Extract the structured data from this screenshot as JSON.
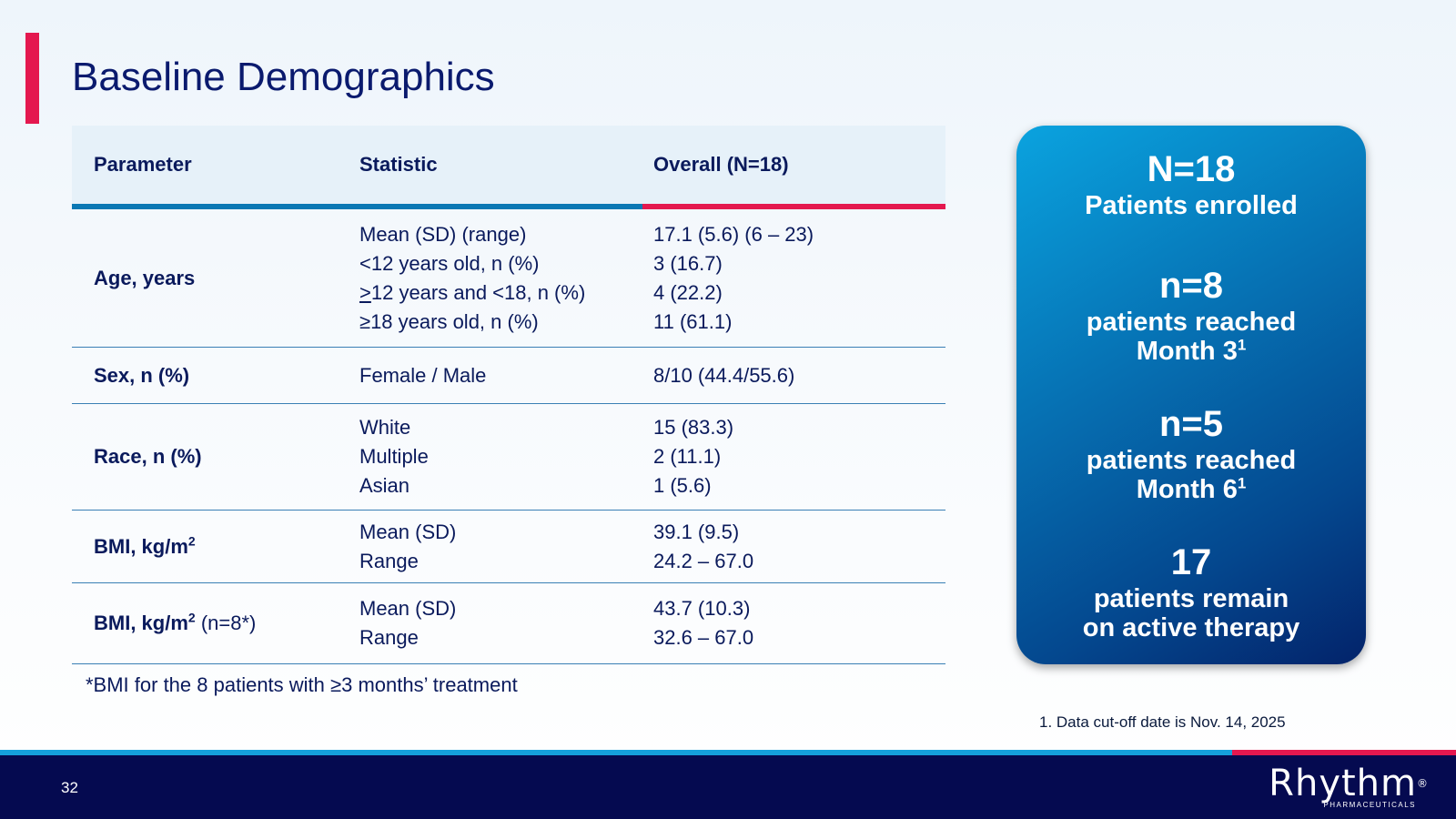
{
  "title": "Baseline Demographics",
  "table": {
    "headers": [
      "Parameter",
      "Statistic",
      "Overall (N=18)"
    ],
    "rows": [
      {
        "param": "Age, years",
        "stats": [
          "Mean (SD) (range)",
          "<12 years old, n (%)",
          ">12 years and <18, n (%)",
          "≥18 years old, n (%)"
        ],
        "values": [
          "17.1 (5.6) (6 – 23)",
          "3 (16.7)",
          "4 (22.2)",
          "11 (61.1)"
        ]
      },
      {
        "param": "Sex, n (%)",
        "stats": [
          "Female / Male"
        ],
        "values": [
          "8/10 (44.4/55.6)"
        ]
      },
      {
        "param": "Race, n (%)",
        "stats": [
          "White",
          "Multiple",
          "Asian"
        ],
        "values": [
          "15 (83.3)",
          "2 (11.1)",
          "1 (5.6)"
        ]
      },
      {
        "param": "BMI, kg/m",
        "param_sup": "2",
        "stats": [
          "Mean (SD)",
          "Range"
        ],
        "values": [
          "39.1 (9.5)",
          "24.2 – 67.0"
        ]
      },
      {
        "param": "BMI, kg/m",
        "param_sup": "2",
        "param_suffix": " (n=8*)",
        "stats": [
          "Mean (SD)",
          "Range"
        ],
        "values": [
          "43.7 (10.3)",
          "32.6  – 67.0"
        ]
      }
    ]
  },
  "table_footnote": "*BMI for the 8 patients with ≥3 months’ treatment",
  "callout": {
    "stats": [
      {
        "big": "N=18",
        "lines": [
          "Patients enrolled"
        ]
      },
      {
        "big": "n=8",
        "lines": [
          "patients reached",
          "Month 3"
        ],
        "sup": "1"
      },
      {
        "big": "n=5",
        "lines": [
          "patients reached",
          "Month 6"
        ],
        "sup": "1"
      },
      {
        "big": "17",
        "lines": [
          "patients remain",
          "on active therapy"
        ]
      }
    ]
  },
  "cutoff_note": "1. Data cut-off date is Nov. 14, 2025",
  "footer": {
    "page_number": "32",
    "logo_text": "Rhythm",
    "logo_reg": "®",
    "logo_sub": "PHARMACEUTICALS"
  },
  "colors": {
    "accent_red": "#e4184f",
    "accent_blue": "#0a78b4",
    "navy": "#050a50"
  }
}
